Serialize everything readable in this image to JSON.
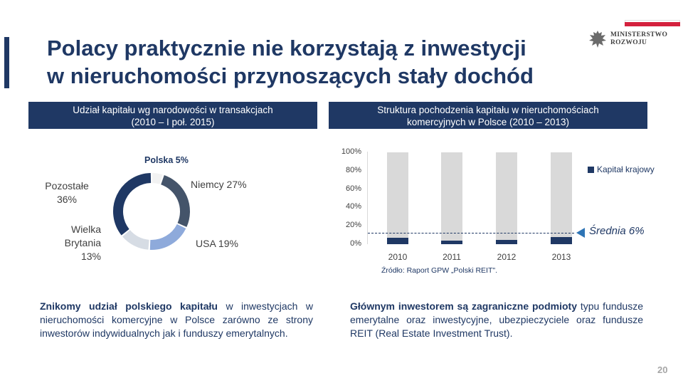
{
  "title_line1": "Polacy praktycznie nie korzystają z inwestycji",
  "title_line2": "w nieruchomości przynoszących stały dochód",
  "logo": {
    "ministry_line1": "MINISTERSTWO",
    "ministry_line2": "ROZWOJU",
    "icon": "eagle-emblem-icon"
  },
  "left_panel": {
    "header_line1": "Udział kapitału wg narodowości w transakcjach",
    "header_line2": "(2010 – I poł. 2015)"
  },
  "right_panel": {
    "header_line1": "Struktura pochodzenia kapitału w nieruchomościach",
    "header_line2": "komercyjnych w Polsce (2010 – 2013)"
  },
  "donut_labels": {
    "polska": "Polska 5%",
    "niemcy": "Niemcy 27%",
    "usa": "USA 19%",
    "wb_line1": "Wielka",
    "wb_line2": "Brytania",
    "wb_line3": "13%",
    "poz_line1": "Pozostałe",
    "poz_line2": "36%"
  },
  "chart_data": [
    {
      "type": "pie",
      "categories": [
        "Polska",
        "Niemcy",
        "USA",
        "Wielka Brytania",
        "Pozostałe"
      ],
      "values": [
        5,
        27,
        19,
        13,
        36
      ],
      "colors": [
        "#ffffff",
        "#44546a",
        "#8eaadb",
        "#d6dce4",
        "#1f3864"
      ]
    },
    {
      "type": "bar",
      "categories": [
        "2010",
        "2011",
        "2012",
        "2013"
      ],
      "series": [
        {
          "name": "Kapitał krajowy",
          "values": [
            7,
            4,
            5,
            8
          ]
        }
      ],
      "ylim": [
        0,
        100
      ],
      "yticks": [
        "0%",
        "20%",
        "40%",
        "60%",
        "80%",
        "100%"
      ],
      "average_label": "Średnia 6%",
      "average_value": 6,
      "source": "Źródło: Raport GPW „Polski REIT\"."
    }
  ],
  "paragraph_left": {
    "bold": "Znikomy udział polskiego kapitału",
    "rest": " w inwestycjach w nieruchomości komercyjne w Polsce zarówno ze strony inwestorów indywidualnych jak i funduszy emerytalnych."
  },
  "paragraph_right": {
    "bold": "Głównym inwestorem są zagraniczne podmioty",
    "rest": " typu fundusze emerytalne oraz inwestycyjne, ubezpieczyciele oraz fundusze REIT (Real Estate Investment Trust)."
  },
  "page_number": "20"
}
